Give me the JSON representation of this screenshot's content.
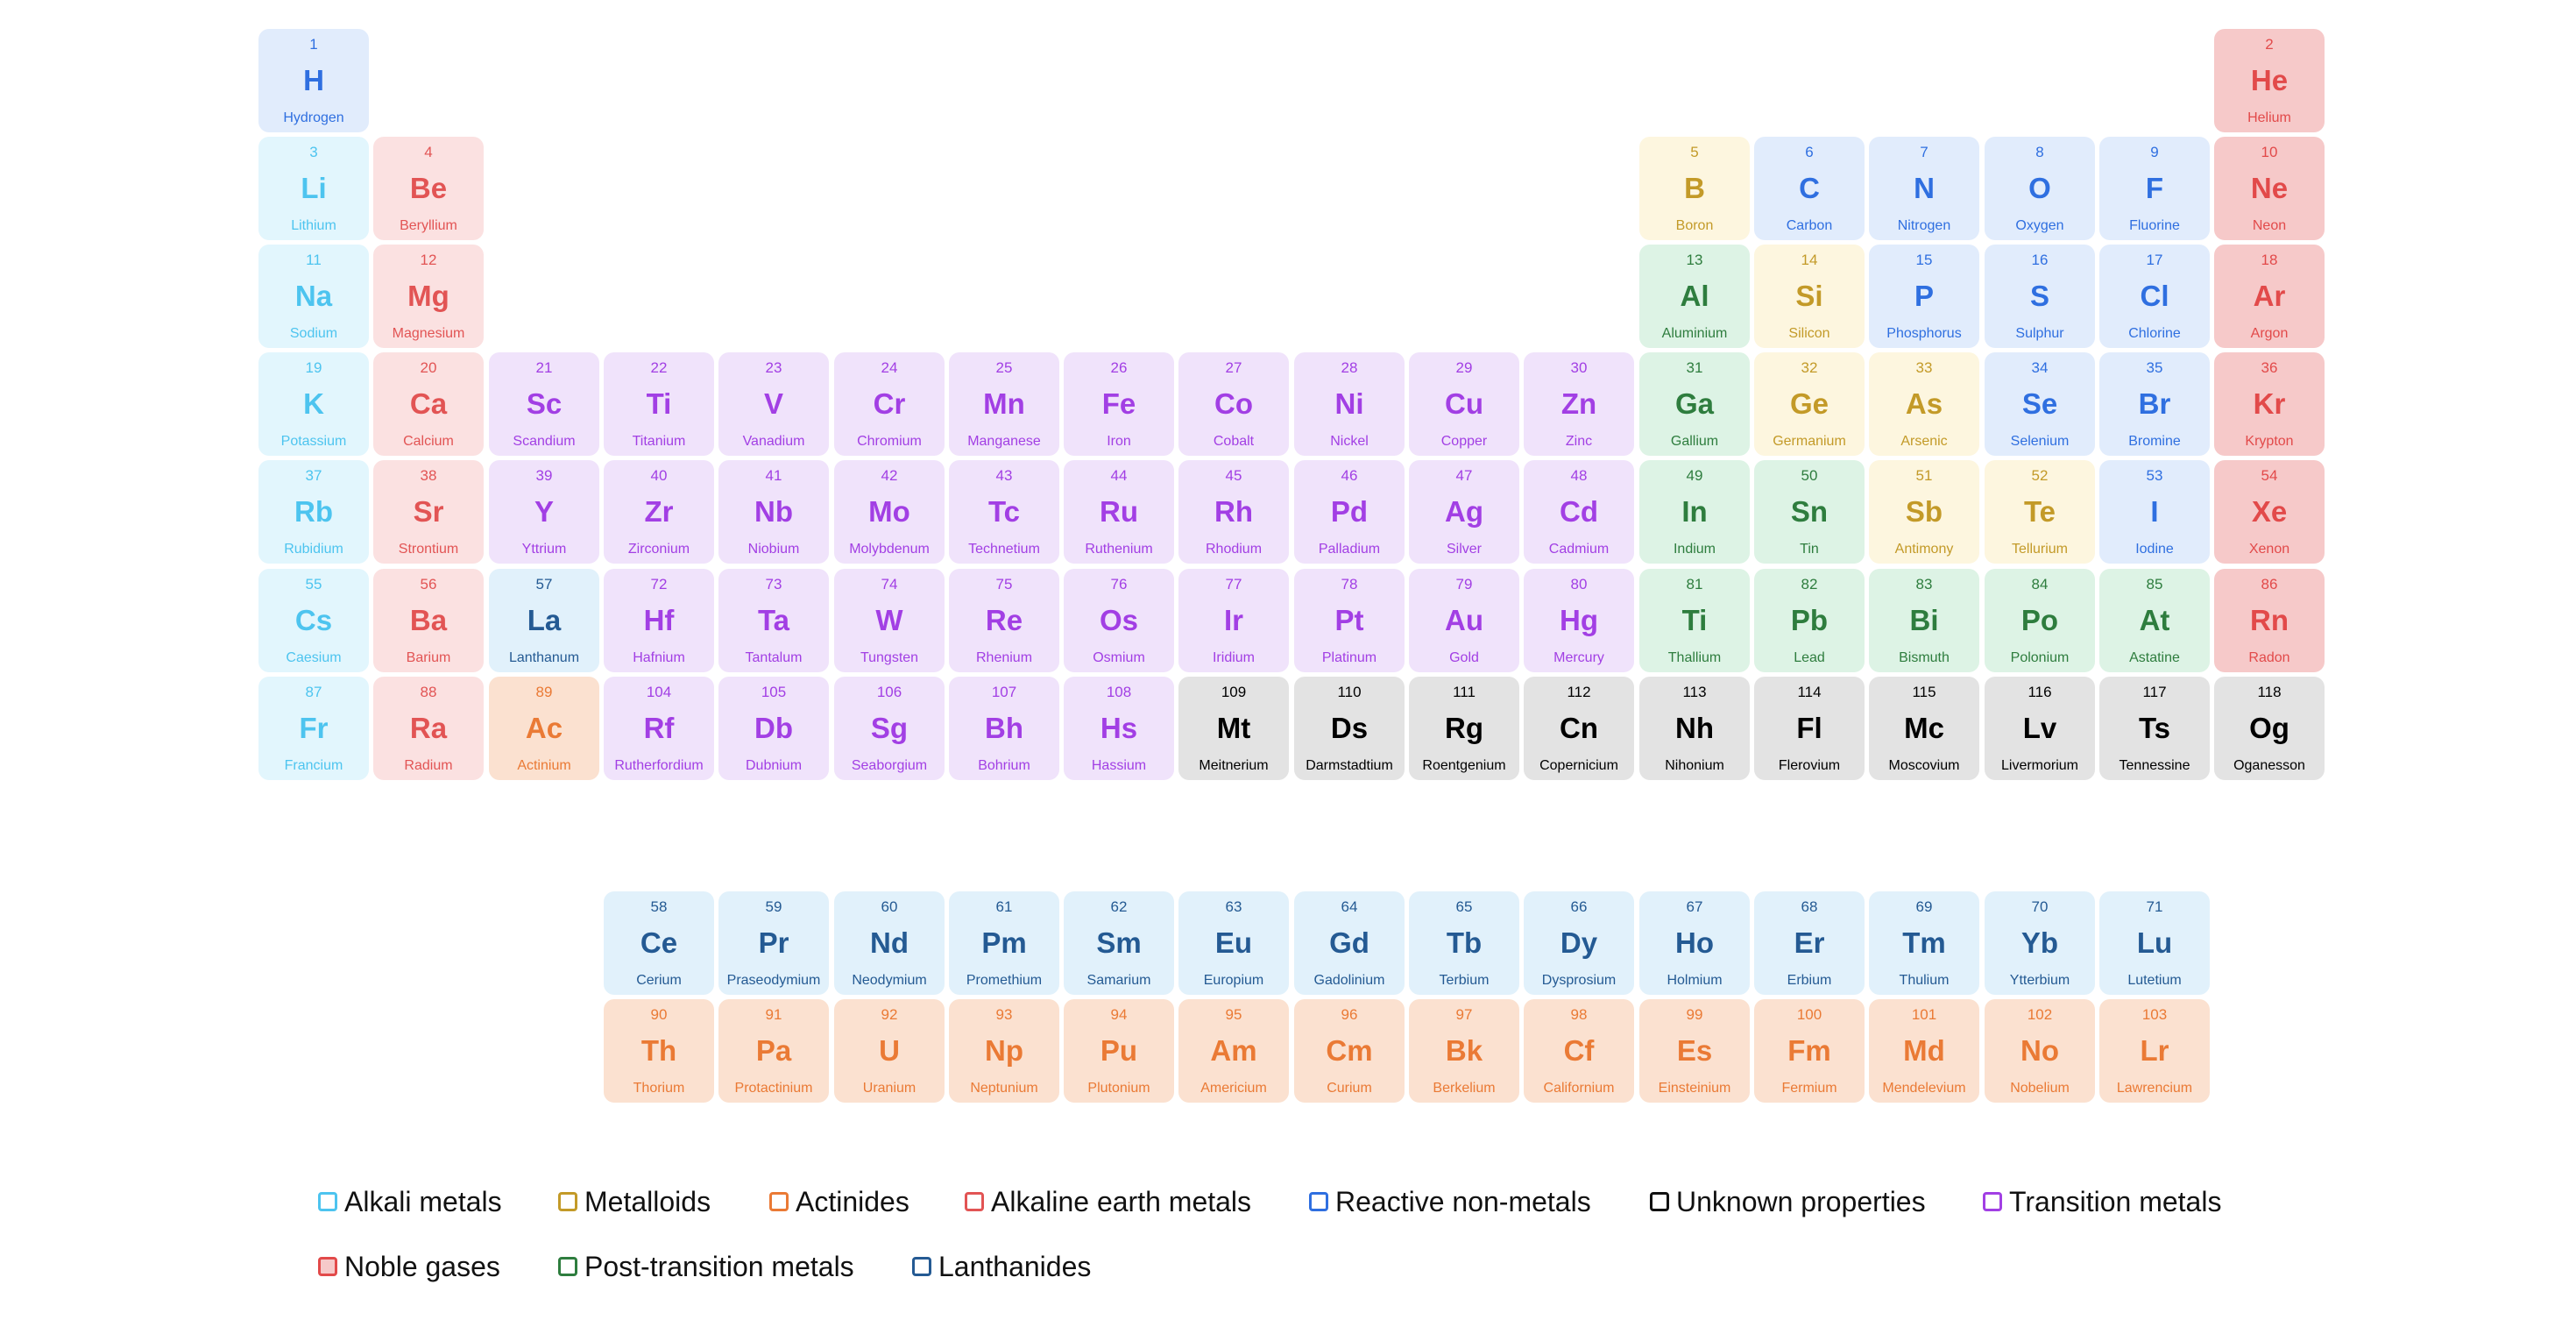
{
  "elements": [
    [
      "1",
      "H",
      "Hydrogen",
      "reactive"
    ],
    [
      "2",
      "He",
      "Helium",
      "noble"
    ],
    [
      "3",
      "Li",
      "Lithium",
      "alkali"
    ],
    [
      "4",
      "Be",
      "Beryllium",
      "alkaline"
    ],
    [
      "5",
      "B",
      "Boron",
      "metalloid"
    ],
    [
      "6",
      "C",
      "Carbon",
      "reactive"
    ],
    [
      "7",
      "N",
      "Nitrogen",
      "reactive"
    ],
    [
      "8",
      "O",
      "Oxygen",
      "reactive"
    ],
    [
      "9",
      "F",
      "Fluorine",
      "reactive"
    ],
    [
      "10",
      "Ne",
      "Neon",
      "noble"
    ],
    [
      "11",
      "Na",
      "Sodium",
      "alkali"
    ],
    [
      "12",
      "Mg",
      "Magnesium",
      "alkaline"
    ],
    [
      "13",
      "Al",
      "Aluminium",
      "post"
    ],
    [
      "14",
      "Si",
      "Silicon",
      "metalloid"
    ],
    [
      "15",
      "P",
      "Phosphorus",
      "reactive"
    ],
    [
      "16",
      "S",
      "Sulphur",
      "reactive"
    ],
    [
      "17",
      "Cl",
      "Chlorine",
      "reactive"
    ],
    [
      "18",
      "Ar",
      "Argon",
      "noble"
    ],
    [
      "19",
      "K",
      "Potassium",
      "alkali"
    ],
    [
      "20",
      "Ca",
      "Calcium",
      "alkaline"
    ],
    [
      "21",
      "Sc",
      "Scandium",
      "transition"
    ],
    [
      "22",
      "Ti",
      "Titanium",
      "transition"
    ],
    [
      "23",
      "V",
      "Vanadium",
      "transition"
    ],
    [
      "24",
      "Cr",
      "Chromium",
      "transition"
    ],
    [
      "25",
      "Mn",
      "Manganese",
      "transition"
    ],
    [
      "26",
      "Fe",
      "Iron",
      "transition"
    ],
    [
      "27",
      "Co",
      "Cobalt",
      "transition"
    ],
    [
      "28",
      "Ni",
      "Nickel",
      "transition"
    ],
    [
      "29",
      "Cu",
      "Copper",
      "transition"
    ],
    [
      "30",
      "Zn",
      "Zinc",
      "transition"
    ],
    [
      "31",
      "Ga",
      "Gallium",
      "post"
    ],
    [
      "32",
      "Ge",
      "Germanium",
      "metalloid"
    ],
    [
      "33",
      "As",
      "Arsenic",
      "metalloid"
    ],
    [
      "34",
      "Se",
      "Selenium",
      "reactive"
    ],
    [
      "35",
      "Br",
      "Bromine",
      "reactive"
    ],
    [
      "36",
      "Kr",
      "Krypton",
      "noble"
    ],
    [
      "37",
      "Rb",
      "Rubidium",
      "alkali"
    ],
    [
      "38",
      "Sr",
      "Strontium",
      "alkaline"
    ],
    [
      "39",
      "Y",
      "Yttrium",
      "transition"
    ],
    [
      "40",
      "Zr",
      "Zirconium",
      "transition"
    ],
    [
      "41",
      "Nb",
      "Niobium",
      "transition"
    ],
    [
      "42",
      "Mo",
      "Molybdenum",
      "transition"
    ],
    [
      "43",
      "Tc",
      "Technetium",
      "transition"
    ],
    [
      "44",
      "Ru",
      "Ruthenium",
      "transition"
    ],
    [
      "45",
      "Rh",
      "Rhodium",
      "transition"
    ],
    [
      "46",
      "Pd",
      "Palladium",
      "transition"
    ],
    [
      "47",
      "Ag",
      "Silver",
      "transition"
    ],
    [
      "48",
      "Cd",
      "Cadmium",
      "transition"
    ],
    [
      "49",
      "In",
      "Indium",
      "post"
    ],
    [
      "50",
      "Sn",
      "Tin",
      "post"
    ],
    [
      "51",
      "Sb",
      "Antimony",
      "metalloid"
    ],
    [
      "52",
      "Te",
      "Tellurium",
      "metalloid"
    ],
    [
      "53",
      "I",
      "Iodine",
      "reactive"
    ],
    [
      "54",
      "Xe",
      "Xenon",
      "noble"
    ],
    [
      "55",
      "Cs",
      "Caesium",
      "alkali"
    ],
    [
      "56",
      "Ba",
      "Barium",
      "alkaline"
    ],
    [
      "57",
      "La",
      "Lanthanum",
      "lanthanide"
    ],
    [
      "72",
      "Hf",
      "Hafnium",
      "transition"
    ],
    [
      "73",
      "Ta",
      "Tantalum",
      "transition"
    ],
    [
      "74",
      "W",
      "Tungsten",
      "transition"
    ],
    [
      "75",
      "Re",
      "Rhenium",
      "transition"
    ],
    [
      "76",
      "Os",
      "Osmium",
      "transition"
    ],
    [
      "77",
      "Ir",
      "Iridium",
      "transition"
    ],
    [
      "78",
      "Pt",
      "Platinum",
      "transition"
    ],
    [
      "79",
      "Au",
      "Gold",
      "transition"
    ],
    [
      "80",
      "Hg",
      "Mercury",
      "transition"
    ],
    [
      "81",
      "Ti",
      "Thallium",
      "post"
    ],
    [
      "82",
      "Pb",
      "Lead",
      "post"
    ],
    [
      "83",
      "Bi",
      "Bismuth",
      "post"
    ],
    [
      "84",
      "Po",
      "Polonium",
      "post"
    ],
    [
      "85",
      "At",
      "Astatine",
      "post"
    ],
    [
      "86",
      "Rn",
      "Radon",
      "noble"
    ],
    [
      "87",
      "Fr",
      "Francium",
      "alkali"
    ],
    [
      "88",
      "Ra",
      "Radium",
      "alkaline"
    ],
    [
      "89",
      "Ac",
      "Actinium",
      "actinide"
    ],
    [
      "104",
      "Rf",
      "Rutherfordium",
      "transition"
    ],
    [
      "105",
      "Db",
      "Dubnium",
      "transition"
    ],
    [
      "106",
      "Sg",
      "Seaborgium",
      "transition"
    ],
    [
      "107",
      "Bh",
      "Bohrium",
      "transition"
    ],
    [
      "108",
      "Hs",
      "Hassium",
      "transition"
    ],
    [
      "109",
      "Mt",
      "Meitnerium",
      "unknown"
    ],
    [
      "110",
      "Ds",
      "Darmstadtium",
      "unknown"
    ],
    [
      "111",
      "Rg",
      "Roentgenium",
      "unknown"
    ],
    [
      "112",
      "Cn",
      "Copernicium",
      "unknown"
    ],
    [
      "113",
      "Nh",
      "Nihonium",
      "unknown"
    ],
    [
      "114",
      "Fl",
      "Flerovium",
      "unknown"
    ],
    [
      "115",
      "Mc",
      "Moscovium",
      "unknown"
    ],
    [
      "116",
      "Lv",
      "Livermorium",
      "unknown"
    ],
    [
      "117",
      "Ts",
      "Tennessine",
      "unknown"
    ],
    [
      "118",
      "Og",
      "Oganesson",
      "unknown"
    ],
    [
      "58",
      "Ce",
      "Cerium",
      "lanthanide"
    ],
    [
      "59",
      "Pr",
      "Praseodymium",
      "lanthanide"
    ],
    [
      "60",
      "Nd",
      "Neodymium",
      "lanthanide"
    ],
    [
      "61",
      "Pm",
      "Promethium",
      "lanthanide"
    ],
    [
      "62",
      "Sm",
      "Samarium",
      "lanthanide"
    ],
    [
      "63",
      "Eu",
      "Europium",
      "lanthanide"
    ],
    [
      "64",
      "Gd",
      "Gadolinium",
      "lanthanide"
    ],
    [
      "65",
      "Tb",
      "Terbium",
      "lanthanide"
    ],
    [
      "66",
      "Dy",
      "Dysprosium",
      "lanthanide"
    ],
    [
      "67",
      "Ho",
      "Holmium",
      "lanthanide"
    ],
    [
      "68",
      "Er",
      "Erbium",
      "lanthanide"
    ],
    [
      "69",
      "Tm",
      "Thulium",
      "lanthanide"
    ],
    [
      "70",
      "Yb",
      "Ytterbium",
      "lanthanide"
    ],
    [
      "71",
      "Lu",
      "Lutetium",
      "lanthanide"
    ],
    [
      "90",
      "Th",
      "Thorium",
      "actinide"
    ],
    [
      "91",
      "Pa",
      "Protactinium",
      "actinide"
    ],
    [
      "92",
      "U",
      "Uranium",
      "actinide"
    ],
    [
      "93",
      "Np",
      "Neptunium",
      "actinide"
    ],
    [
      "94",
      "Pu",
      "Plutonium",
      "actinide"
    ],
    [
      "95",
      "Am",
      "Americium",
      "actinide"
    ],
    [
      "96",
      "Cm",
      "Curium",
      "actinide"
    ],
    [
      "97",
      "Bk",
      "Berkelium",
      "actinide"
    ],
    [
      "98",
      "Cf",
      "Californium",
      "actinide"
    ],
    [
      "99",
      "Es",
      "Einsteinium",
      "actinide"
    ],
    [
      "100",
      "Fm",
      "Fermium",
      "actinide"
    ],
    [
      "101",
      "Md",
      "Mendelevium",
      "actinide"
    ],
    [
      "102",
      "No",
      "Nobelium",
      "actinide"
    ],
    [
      "103",
      "Lr",
      "Lawrencium",
      "actinide"
    ]
  ],
  "legend": [
    {
      "key": "alkali",
      "label": "Alkali metals",
      "color": "#4dc4ef"
    },
    {
      "key": "metalloid",
      "label": "Metalloids",
      "color": "#c39a28"
    },
    {
      "key": "actinide",
      "label": "Actinides",
      "color": "#ea7a35"
    },
    {
      "key": "alkaline",
      "label": "Alkaline earth metals",
      "color": "#e25454"
    },
    {
      "key": "reactive",
      "label": "Reactive non-metals",
      "color": "#2f6fe0"
    },
    {
      "key": "unknown",
      "label": "Unknown properties",
      "color": "#111111"
    },
    {
      "key": "transition",
      "label": "Transition metals",
      "color": "#a23fe4"
    },
    {
      "key": "noble",
      "label": "Noble gases",
      "color": "#e24a4a"
    },
    {
      "key": "post",
      "label": "Post-transition metals",
      "color": "#2e7d3e"
    },
    {
      "key": "lanthanide",
      "label": "Lanthanides",
      "color": "#245a93"
    }
  ],
  "colors": {
    "alkali": "#e2f6fd",
    "alkaline": "#fbe1e1",
    "transition": "#f0e3fb",
    "post": "#ddf3e5",
    "metalloid": "#fdf6df",
    "reactive": "#e1ecfc",
    "noble": "#f6c9c9",
    "lanthanide": "#e1f1fb",
    "actinide": "#fbe1d0",
    "unknown": "#e3e3e3"
  }
}
